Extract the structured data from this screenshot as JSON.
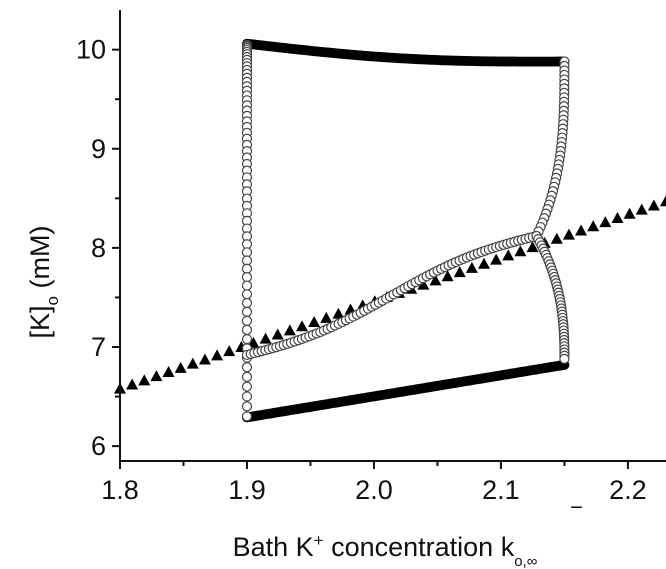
{
  "chart_data": {
    "type": "scatter",
    "xlabel": {
      "text": "Bath K",
      "sup": "+",
      "rest": " concentration ",
      "symbol": "k",
      "symbol_over": "‾",
      "symbol_sub": "o,∞"
    },
    "ylabel": {
      "text": "[K]",
      "sub": "o",
      "rest": " (mM)"
    },
    "xlim": [
      1.8,
      2.23
    ],
    "ylim": [
      5.85,
      10.4
    ],
    "xticks": [
      1.8,
      1.9,
      2.0,
      2.1,
      2.2
    ],
    "xtick_labels": [
      "1.8",
      "1.9",
      "2.0",
      "2.1",
      "2.2"
    ],
    "yticks": [
      6,
      7,
      8,
      9,
      10
    ],
    "ytick_labels": [
      "6",
      "7",
      "8",
      "9",
      "10"
    ],
    "series": [
      {
        "marker": "triangle",
        "fill": "#000000",
        "x_range": [
          1.8,
          2.23
        ],
        "y_range": [
          6.58,
          8.47
        ],
        "points": 46
      },
      {
        "marker": "circle-filled",
        "fill": "#000000",
        "segments": [
          {
            "x": [
              1.9,
              2.15
            ],
            "y_start": 6.29,
            "y_end": 6.82,
            "curve": 0,
            "points": 130
          },
          {
            "x": [
              1.9,
              2.15
            ],
            "y_start": 10.06,
            "y_end": 9.88,
            "curve": -0.06,
            "points": 130
          }
        ]
      },
      {
        "marker": "circle-open",
        "fill": "#ffffff",
        "stroke": "#444444",
        "middle_branch": {
          "x": [
            1.9,
            2.128
          ],
          "y_start": 6.92,
          "y_end": 8.12,
          "points": 80
        },
        "right_upper": {
          "x_top": 2.15,
          "x_bottom": 2.128,
          "y_top": 9.88,
          "y_bottom": 8.12,
          "points": 40
        },
        "right_lower": {
          "x_top": 2.128,
          "x_bottom": 2.15,
          "y_top": 8.12,
          "y_bottom": 6.88,
          "points": 40
        },
        "left_vertical": {
          "x": 1.9,
          "y_top": 10.05,
          "y_bottom": 6.3,
          "points": 60
        }
      }
    ]
  }
}
